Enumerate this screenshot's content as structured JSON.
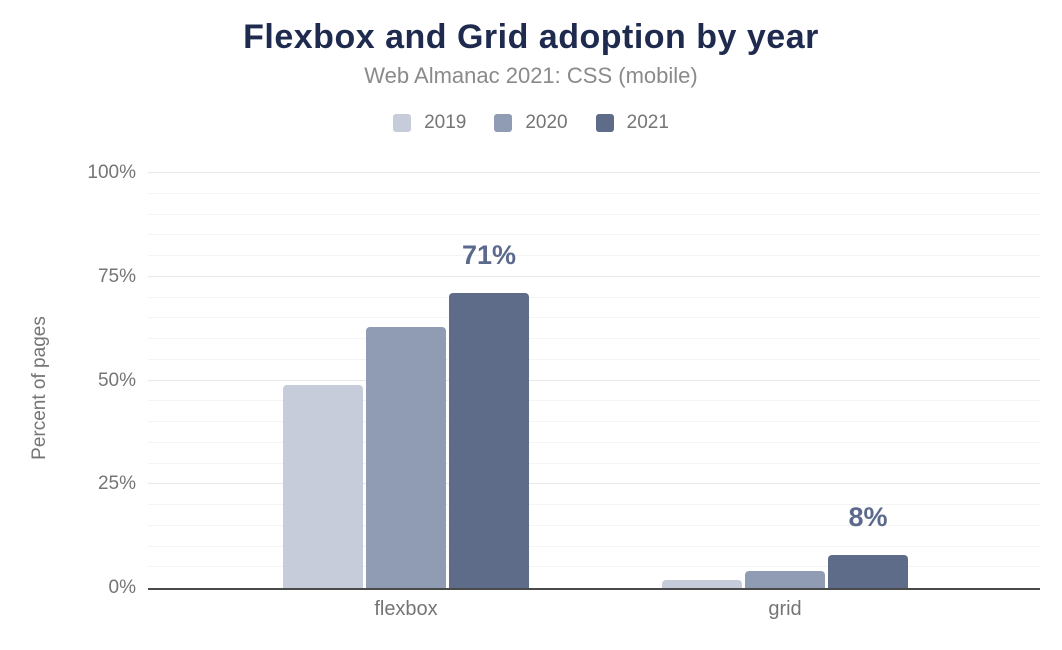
{
  "chart_data": {
    "type": "bar",
    "title": "Flexbox and Grid adoption by year",
    "subtitle": "Web Almanac 2021: CSS (mobile)",
    "ylabel": "Percent of pages",
    "xlabel": "",
    "categories": [
      "flexbox",
      "grid"
    ],
    "series": [
      {
        "name": "2019",
        "color": "#c6ccd9",
        "values": [
          49,
          2
        ]
      },
      {
        "name": "2020",
        "color": "#8f9cb3",
        "values": [
          63,
          4
        ]
      },
      {
        "name": "2021",
        "color": "#5e6b89",
        "values": [
          71,
          8
        ],
        "data_labels": [
          "71%",
          "8%"
        ],
        "label_color": "#5b6a8c"
      }
    ],
    "ylim": [
      0,
      100
    ],
    "ytick_values": [
      0,
      25,
      50,
      75,
      100
    ],
    "ytick_labels": [
      "0%",
      "25%",
      "50%",
      "75%",
      "100%"
    ],
    "minor_grid_step": 5,
    "major_grid_step": 25,
    "grid": true,
    "legend_position": "top"
  },
  "colors": {
    "background": "#ffffff",
    "title_text": "#1f2b4e",
    "subtitle_text": "#8a8a8a",
    "axis_text": "#757575",
    "axis_line": "#4a4a4a",
    "grid_major": "#e8e8e8",
    "grid_minor": "#f4f4f4"
  }
}
